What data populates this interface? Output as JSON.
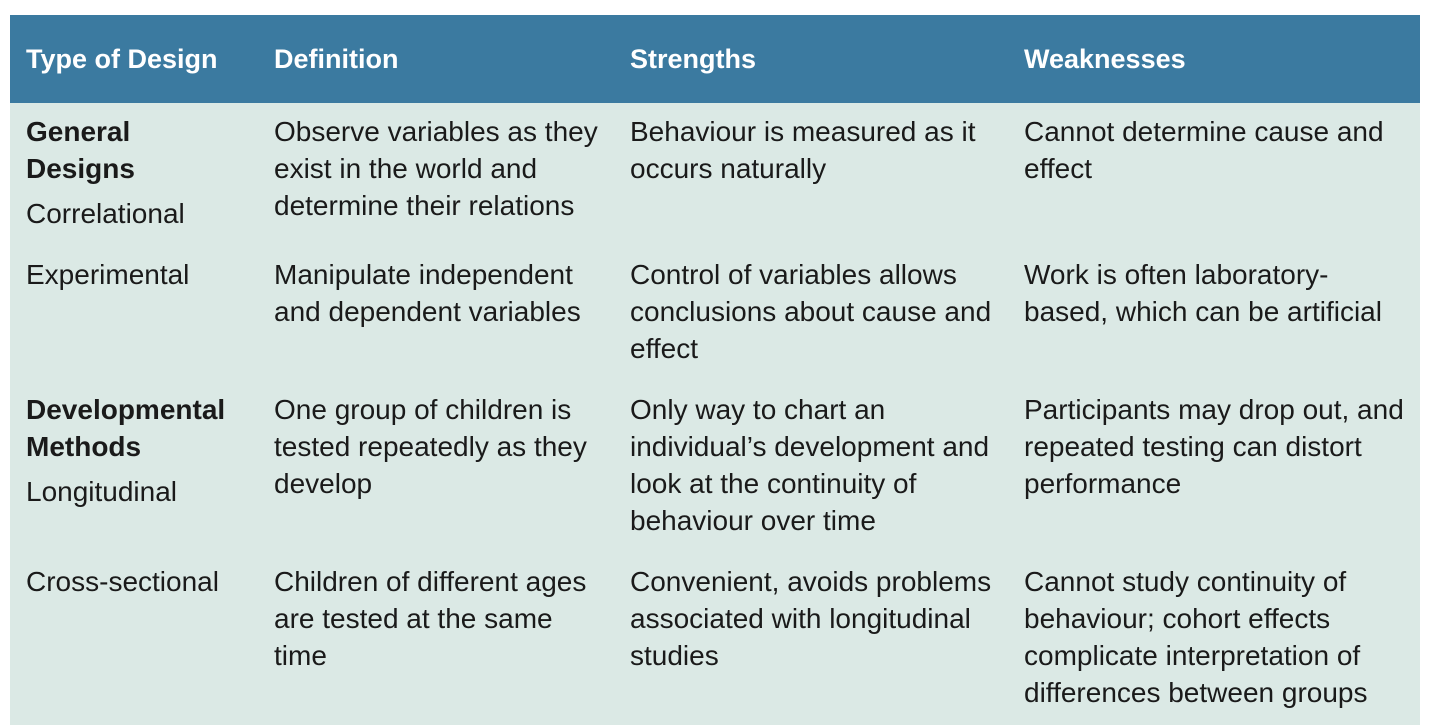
{
  "table": {
    "header": [
      "Type of Design",
      "Definition",
      "Strengths",
      "Weaknesses"
    ],
    "rows": [
      [
        {
          "group": "General Designs",
          "label": "Correlational"
        },
        "Observe variables as they exist in the world and determine their relations",
        "Behaviour is measured as it occurs naturally",
        "Cannot determine cause and effect"
      ],
      [
        {
          "label": "Experimental"
        },
        "Manipulate independent and dependent variables",
        "Control of variables allows conclusions about cause and effect",
        "Work is often laboratory-based, which can be artificial"
      ],
      [
        {
          "group": "Developmental Methods",
          "label": "Longitudinal"
        },
        "One group of children is tested repeatedly as they develop",
        "Only way to chart an individual’s development and look at the continuity of behaviour over time",
        "Participants may drop out, and repeated testing can distort performance"
      ],
      [
        {
          "label": "Cross-sectional"
        },
        "Children of different ages are tested at the same time",
        "Convenient, avoids problems associated with longitudinal studies",
        "Cannot study continuity of behaviour; cohort effects complicate interpretation of differences between groups"
      ]
    ]
  }
}
